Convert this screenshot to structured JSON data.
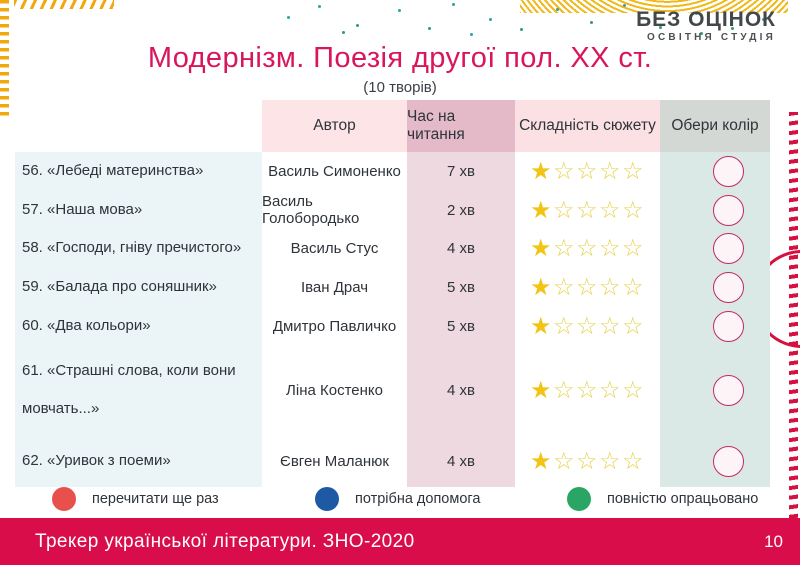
{
  "page": {
    "title": "Модернізм. Поезія другої пол. ХХ ст.",
    "subtitle": "(10 творів)"
  },
  "logo": {
    "name": "БЕЗ ОЦІНОК",
    "tagline": "ОСВІТНЯ СТУДІЯ"
  },
  "table": {
    "headers": {
      "title": "",
      "author": "Автор",
      "time": "Час на читання",
      "difficulty": "Складність сюжету",
      "color": "Обери колір"
    },
    "rows": [
      {
        "title": "56. «Лебеді материнства»",
        "author": "Василь Симоненко",
        "time": "7 хв",
        "stars_filled": 1,
        "stars_total": 5
      },
      {
        "title": "57. «Наша мова»",
        "author": "Василь Голобородько",
        "time": "2 хв",
        "stars_filled": 1,
        "stars_total": 5
      },
      {
        "title": "58. «Господи, гніву пречистого»",
        "author": "Василь Стус",
        "time": "4 хв",
        "stars_filled": 1,
        "stars_total": 5
      },
      {
        "title": "59. «Балада про соняшник»",
        "author": "Іван Драч",
        "time": "5 хв",
        "stars_filled": 1,
        "stars_total": 5
      },
      {
        "title": "60. «Два кольори»",
        "author": "Дмитро Павличко",
        "time": "5 хв",
        "stars_filled": 1,
        "stars_total": 5
      },
      {
        "title": "61. «Страшні слова, коли вони мовчать...»",
        "author": "Ліна Костенко",
        "time": "4 хв",
        "stars_filled": 1,
        "stars_total": 5
      },
      {
        "title": "62. «Уривок з поеми»",
        "author": "Євген Маланюк",
        "time": "4 хв",
        "stars_filled": 1,
        "stars_total": 5
      }
    ]
  },
  "legend": {
    "items": [
      {
        "label": "перечитати ще раз",
        "color": "#e8504c"
      },
      {
        "label": "потрібна допомога",
        "color": "#1d5aa3"
      },
      {
        "label": "повністю опрацьовано",
        "color": "#29a564"
      }
    ]
  },
  "footer": {
    "title": "Трекер української літератури. ЗНО-2020",
    "page_number": "10"
  },
  "colors": {
    "accent_pink": "#d9165c",
    "footer_red": "#d90d49",
    "header_pink_light": "#fce4e7",
    "header_pink_dark": "#e4bac8",
    "cell_pink": "#efd9e0",
    "cell_blue": "#ebf4f6",
    "cell_teal": "#dae9e5",
    "header_gray": "#d4d8d5",
    "star_filled": "#f2c413",
    "star_outline": "#e7d24d",
    "circle_stroke": "#c22a5d",
    "deco_yellow": "#f0a80c",
    "deco_red": "#d6103f"
  },
  "icons": {
    "star_filled_glyph": "★",
    "star_empty_glyph": "☆"
  }
}
